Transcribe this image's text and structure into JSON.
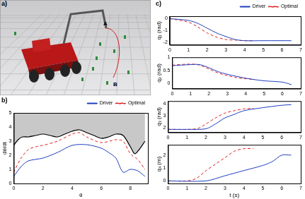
{
  "chart_data": [
    {
      "type": "image",
      "title": "a)",
      "annotations": [
        "A",
        "B"
      ]
    },
    {
      "type": "line",
      "title": "b)",
      "x_label": "θ",
      "y_label": "dθ/dt",
      "xlim": [
        0,
        9.2
      ],
      "xticks": [
        0,
        2,
        4,
        6,
        8
      ],
      "ylim": [
        0,
        5
      ],
      "yticks": [
        0,
        1,
        2,
        3,
        4,
        5
      ],
      "grid": false,
      "legend": "top right",
      "series": [
        {
          "type": "area",
          "color": "#000000",
          "line_style": "solid",
          "x": [
            0,
            0.3,
            0.6,
            1,
            1.5,
            2,
            2.5,
            3,
            3.5,
            4,
            4.5,
            5,
            5.5,
            6,
            6.5,
            7,
            7.5,
            8,
            8.3,
            8.6,
            9
          ],
          "values": [
            2.7,
            3.1,
            3.3,
            3.3,
            3.4,
            3.5,
            3.4,
            3.3,
            3.5,
            3.7,
            3.8,
            3.6,
            3.4,
            3.2,
            3.3,
            3.5,
            3.4,
            2.6,
            2.1,
            2.4,
            3.0
          ]
        },
        {
          "name": "Driver",
          "color": "#1f3fbf",
          "line_style": "solid",
          "x": [
            0,
            0.5,
            1,
            2,
            3,
            4,
            5,
            6,
            6.5,
            7,
            7.5,
            8,
            8.5,
            9
          ],
          "values": [
            0.5,
            1.2,
            1.6,
            1.8,
            2.2,
            2.7,
            2.75,
            2.5,
            2.2,
            1.8,
            0.8,
            1.0,
            0.9,
            0.5
          ]
        },
        {
          "name": "Optimal",
          "color": "#e02020",
          "line_style": "dashed",
          "x": [
            0,
            0.5,
            1,
            1.5,
            2,
            3,
            4,
            4.5,
            5,
            6,
            7,
            7.5,
            8,
            8.5,
            9
          ],
          "values": [
            0.8,
            1.8,
            2.4,
            2.6,
            2.7,
            3.0,
            3.5,
            3.6,
            3.3,
            2.9,
            3.1,
            3.0,
            2.1,
            1.7,
            1.0
          ]
        }
      ]
    },
    {
      "type": "line",
      "title": "c)",
      "y_label": "q₁ (rad)",
      "xlim": [
        0,
        7
      ],
      "xticks": [
        0,
        1,
        2,
        3,
        4,
        5,
        6,
        7
      ],
      "ylim": [
        -2.2,
        0.2
      ],
      "yticks": [
        -2,
        -1,
        0
      ],
      "grid": false,
      "legend": "top right",
      "series": [
        {
          "name": "Driver",
          "color": "#1f3fbf",
          "line_style": "solid",
          "x": [
            0,
            1,
            1.5,
            2,
            2.5,
            3,
            3.5,
            4,
            5,
            6.5
          ],
          "values": [
            0,
            -0.15,
            -0.4,
            -0.8,
            -1.2,
            -1.5,
            -1.75,
            -1.85,
            -1.85,
            -1.85
          ]
        },
        {
          "name": "Optimal",
          "color": "#e02020",
          "line_style": "dashed",
          "x": [
            0,
            1,
            1.5,
            2,
            2.5,
            3,
            3.5,
            4,
            4.5
          ],
          "values": [
            0,
            -0.3,
            -0.7,
            -1.2,
            -1.55,
            -1.75,
            -1.8,
            -1.85,
            -1.85
          ]
        }
      ]
    },
    {
      "type": "line",
      "y_label": "q₂ (rad)",
      "xlim": [
        0,
        7
      ],
      "xticks": [
        0,
        1,
        2,
        3,
        4,
        5,
        6,
        7
      ],
      "ylim": [
        -0.2,
        1
      ],
      "yticks": [
        0,
        0.5,
        1
      ],
      "grid": false,
      "series": [
        {
          "name": "Driver",
          "color": "#1f3fbf",
          "line_style": "solid",
          "x": [
            0,
            1,
            1.5,
            2,
            2.5,
            3,
            4,
            5,
            6,
            6.5
          ],
          "values": [
            0.68,
            0.72,
            0.72,
            0.6,
            0.45,
            0.35,
            0.2,
            0.1,
            0.05,
            -0.05
          ]
        },
        {
          "name": "Optimal",
          "color": "#e02020",
          "line_style": "dashed",
          "x": [
            0,
            1,
            1.5,
            2,
            2.5,
            3,
            3.5,
            4,
            4.5
          ],
          "values": [
            0.7,
            0.74,
            0.7,
            0.55,
            0.4,
            0.3,
            0.22,
            0.18,
            0.15
          ]
        }
      ]
    },
    {
      "type": "line",
      "y_label": "q₃ (rad)",
      "xlim": [
        0,
        7
      ],
      "xticks": [
        0,
        1,
        2,
        3,
        4,
        5,
        6,
        7
      ],
      "ylim": [
        1.6,
        4.2
      ],
      "yticks": [
        2,
        3,
        4
      ],
      "grid": false,
      "series": [
        {
          "name": "Driver",
          "color": "#1f3fbf",
          "line_style": "solid",
          "x": [
            0,
            1,
            2,
            2.5,
            3,
            3.5,
            4,
            5,
            6,
            6.5
          ],
          "values": [
            1.85,
            1.85,
            1.9,
            2.3,
            2.8,
            3.1,
            3.4,
            3.65,
            3.85,
            3.9
          ]
        },
        {
          "name": "Optimal",
          "color": "#e02020",
          "line_style": "dashed",
          "x": [
            0,
            1.5,
            2,
            2.5,
            3,
            3.5,
            4,
            4.5
          ],
          "values": [
            1.85,
            1.9,
            2.3,
            2.8,
            3.2,
            3.4,
            3.55,
            3.6
          ]
        }
      ]
    },
    {
      "type": "line",
      "y_label": "q₄ (m)",
      "x_label": "t (s)",
      "xlim": [
        0,
        7
      ],
      "xticks": [
        0,
        1,
        2,
        3,
        4,
        5,
        6,
        7
      ],
      "ylim": [
        -0.2,
        2.8
      ],
      "yticks": [
        0,
        1,
        2
      ],
      "grid": false,
      "series": [
        {
          "name": "Driver",
          "color": "#1f3fbf",
          "line_style": "solid",
          "x": [
            0,
            2,
            3,
            4,
            5,
            5.5,
            6,
            6.5
          ],
          "values": [
            0,
            0,
            0.4,
            0.8,
            1.2,
            1.5,
            2.0,
            2.0
          ]
        },
        {
          "name": "Optimal",
          "color": "#e02020",
          "line_style": "dashed",
          "x": [
            0,
            1,
            1.5,
            2,
            2.5,
            3,
            3.5,
            4,
            4.5
          ],
          "values": [
            0,
            0,
            0.2,
            0.8,
            1.3,
            1.8,
            2.3,
            2.5,
            2.5
          ]
        }
      ]
    }
  ]
}
